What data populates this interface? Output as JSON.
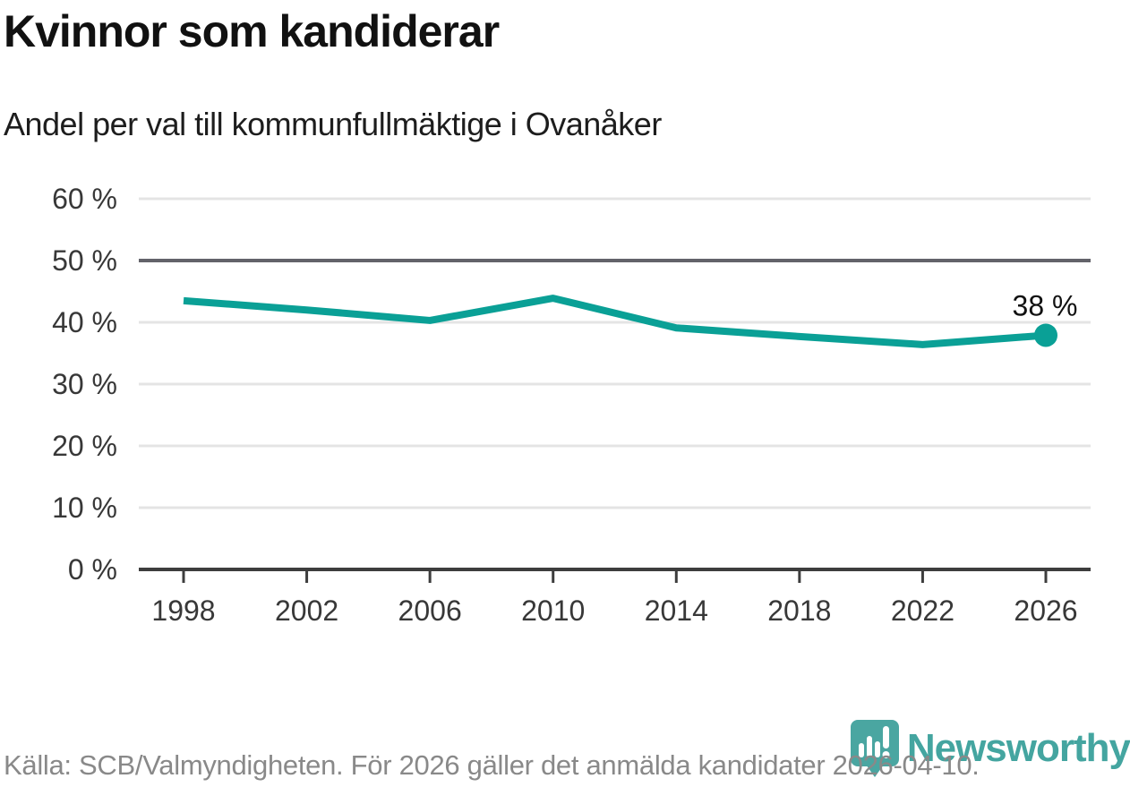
{
  "header": {
    "title": "Kvinnor som kandiderar",
    "subtitle": "Andel per val till kommunfullmäktige i Ovanåker"
  },
  "chart_data": {
    "type": "line",
    "title": "Kvinnor som kandiderar",
    "subtitle": "Andel per val till kommunfullmäktige i Ovanåker",
    "categories": [
      "1998",
      "2002",
      "2006",
      "2010",
      "2014",
      "2018",
      "2022",
      "2026"
    ],
    "values": [
      43.5,
      42.0,
      40.3,
      43.9,
      39.1,
      37.7,
      36.4,
      37.9
    ],
    "unit": "%",
    "xlabel": "",
    "ylabel": "",
    "ylim": [
      0,
      60
    ],
    "ytick_step": 10,
    "ytick_labels": [
      "0 %",
      "10 %",
      "20 %",
      "30 %",
      "40 %",
      "50 %",
      "60 %"
    ],
    "grid": "horizontal",
    "emphasized_gridline_value": 50,
    "end_label": "38 %",
    "last_point_marker": true,
    "legend": "none"
  },
  "colors": {
    "line": "#0aa096",
    "marker": "#0aa096",
    "grid_light": "#e4e4e4",
    "grid_dark": "#63636a",
    "axis": "#3d3d3d",
    "tick_text": "#383838",
    "end_label_text": "#111111",
    "logo_teal": "#4aa6a1",
    "wordmark_teal": "#44a5a0",
    "source_gray": "#898989"
  },
  "footer": {
    "source": "Källa: SCB/Valmyndigheten. För 2026 gäller det anmälda kandidater 2026-04-10.",
    "brand": "Newsworthy"
  }
}
